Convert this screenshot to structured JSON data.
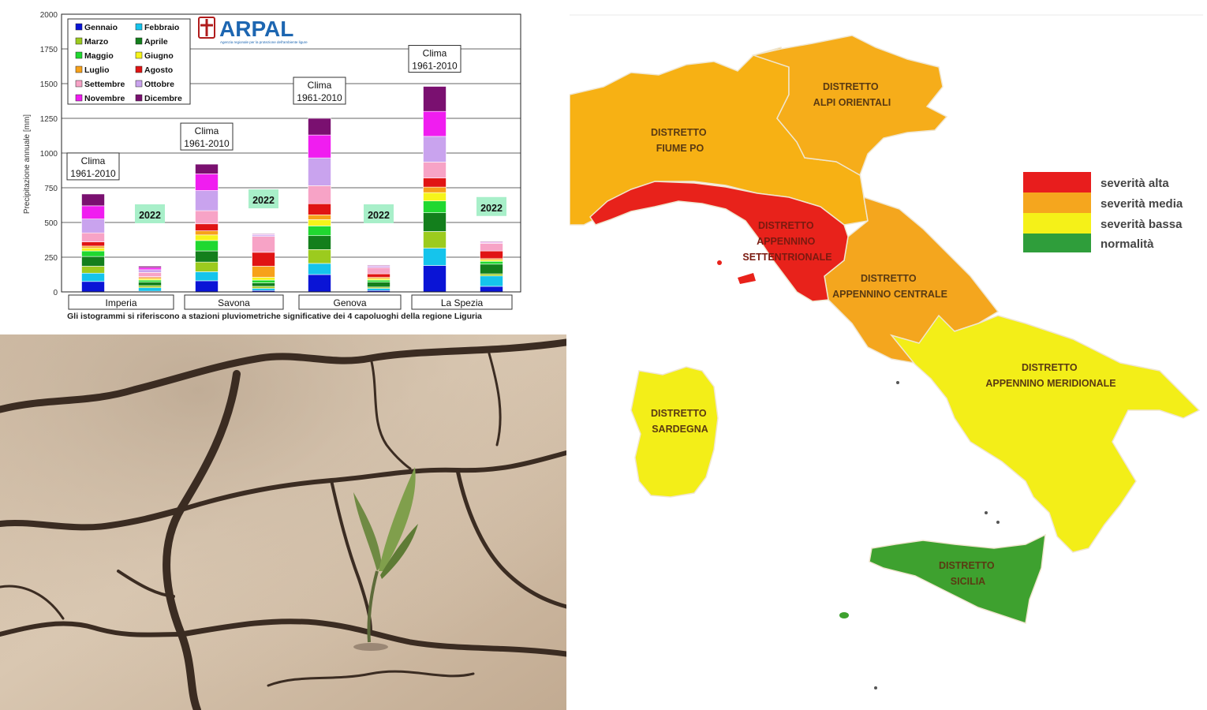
{
  "chart_data": {
    "type": "bar",
    "stacked": true,
    "ylabel": "Precipitazione annuale [mm]",
    "ylim": [
      0,
      2000
    ],
    "yticks": [
      0,
      250,
      500,
      750,
      1000,
      1250,
      1500,
      1750,
      2000
    ],
    "grid": true,
    "legend_position": "top-left",
    "caption": "Gli istogrammi si riferiscono a stazioni pluviometriche significative dei 4 capoluoghi della regione Liguria",
    "logo_text": "ARPAL",
    "logo_subtext": "Agenzia regionale per la protezione dell'ambiente ligure",
    "clima_label": [
      "Clima",
      "1961-2010"
    ],
    "year_label": "2022",
    "cities": [
      "Imperia",
      "Savona",
      "Genova",
      "La Spezia"
    ],
    "months": [
      {
        "name": "Gennaio",
        "color": "#0a14d6"
      },
      {
        "name": "Febbraio",
        "color": "#15c4ec"
      },
      {
        "name": "Marzo",
        "color": "#9ccb1e"
      },
      {
        "name": "Aprile",
        "color": "#137f1c"
      },
      {
        "name": "Maggio",
        "color": "#20d830"
      },
      {
        "name": "Giugno",
        "color": "#f6f41a"
      },
      {
        "name": "Luglio",
        "color": "#f7a11a"
      },
      {
        "name": "Agosto",
        "color": "#e01414"
      },
      {
        "name": "Settembre",
        "color": "#f7a3c6"
      },
      {
        "name": "Ottobre",
        "color": "#c9a3ee"
      },
      {
        "name": "Novembre",
        "color": "#f01df0"
      },
      {
        "name": "Dicembre",
        "color": "#7a1070"
      }
    ],
    "series": [
      {
        "city": "Imperia",
        "period": "Clima 1961-2010",
        "values": [
          75,
          60,
          50,
          70,
          40,
          20,
          15,
          30,
          65,
          100,
          95,
          85
        ]
      },
      {
        "city": "Imperia",
        "period": "2022",
        "values": [
          5,
          25,
          15,
          25,
          15,
          10,
          10,
          5,
          30,
          20,
          15,
          10
        ]
      },
      {
        "city": "Savona",
        "period": "Clima 1961-2010",
        "values": [
          80,
          65,
          70,
          80,
          75,
          40,
          30,
          50,
          95,
          145,
          120,
          70
        ]
      },
      {
        "city": "Savona",
        "period": "2022",
        "values": [
          10,
          15,
          15,
          25,
          20,
          20,
          80,
          100,
          115,
          10,
          5,
          5
        ]
      },
      {
        "city": "Genova",
        "period": "Clima 1961-2010",
        "values": [
          125,
          80,
          100,
          100,
          70,
          45,
          35,
          80,
          130,
          200,
          165,
          120
        ]
      },
      {
        "city": "Genova",
        "period": "2022",
        "values": [
          10,
          15,
          10,
          35,
          15,
          10,
          10,
          25,
          45,
          10,
          5,
          5
        ]
      },
      {
        "city": "La Spezia",
        "period": "Clima 1961-2010",
        "values": [
          190,
          125,
          120,
          135,
          85,
          60,
          40,
          65,
          115,
          185,
          180,
          180
        ]
      },
      {
        "city": "La Spezia",
        "period": "2022",
        "values": [
          40,
          75,
          15,
          70,
          20,
          10,
          10,
          55,
          55,
          5,
          5,
          5
        ]
      }
    ]
  },
  "map": {
    "legend": [
      {
        "label": "severità alta",
        "color": "#e81d1d"
      },
      {
        "label": "severità media",
        "color": "#f5a61e"
      },
      {
        "label": "severità bassa",
        "color": "#f5f118"
      },
      {
        "label": "normalità",
        "color": "#2f9e3b"
      }
    ],
    "districts": [
      {
        "line1": "DISTRETTO",
        "line2": "ALPI ORIENTALI",
        "severity": "media"
      },
      {
        "line1": "DISTRETTO",
        "line2": "FIUME PO",
        "severity": "media"
      },
      {
        "line1": "DISTRETTO",
        "line2": "APPENNINO",
        "line3": "SETTENTRIONALE",
        "severity": "alta"
      },
      {
        "line1": "DISTRETTO",
        "line2": "APPENNINO CENTRALE",
        "severity": "media"
      },
      {
        "line1": "DISTRETTO",
        "line2": "APPENNINO MERIDIONALE",
        "severity": "bassa"
      },
      {
        "line1": "DISTRETTO",
        "line2": "SARDEGNA",
        "severity": "bassa"
      },
      {
        "line1": "DISTRETTO",
        "line2": "SICILIA",
        "severity": "normalità"
      }
    ]
  },
  "photo": {
    "subject": "dry cracked soil with young plant sprout"
  }
}
